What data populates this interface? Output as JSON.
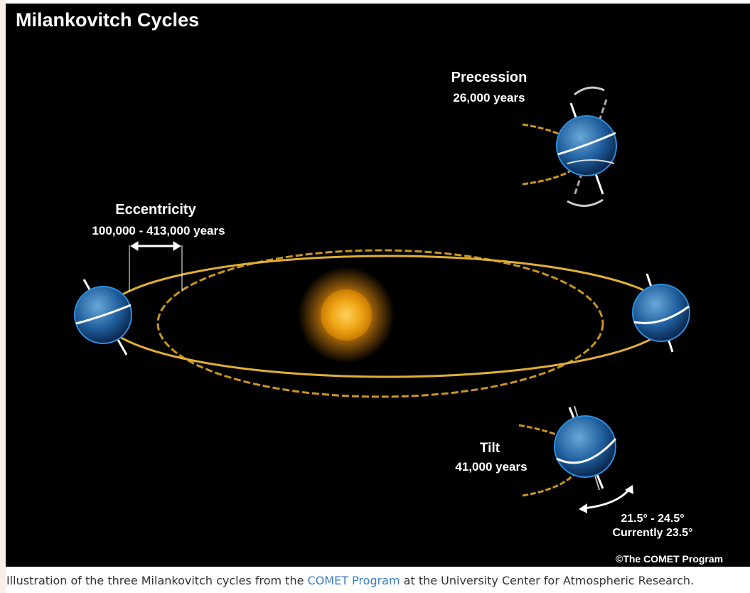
{
  "title": "Milankovitch Cycles",
  "precession": {
    "label": "Precession",
    "period": "26,000 years"
  },
  "eccentricity": {
    "label": "Eccentricity",
    "period": "100,000 - 413,000 years"
  },
  "tilt": {
    "label": "Tilt",
    "period": "41,000 years",
    "range": "21.5° - 24.5°",
    "current": "Currently 23.5°"
  },
  "credit": "©The COMET Program",
  "caption": {
    "before": "Illustration of the three Milankovitch cycles from the ",
    "link": "COMET Program",
    "after": " at the University Center for Atmospheric Research."
  }
}
